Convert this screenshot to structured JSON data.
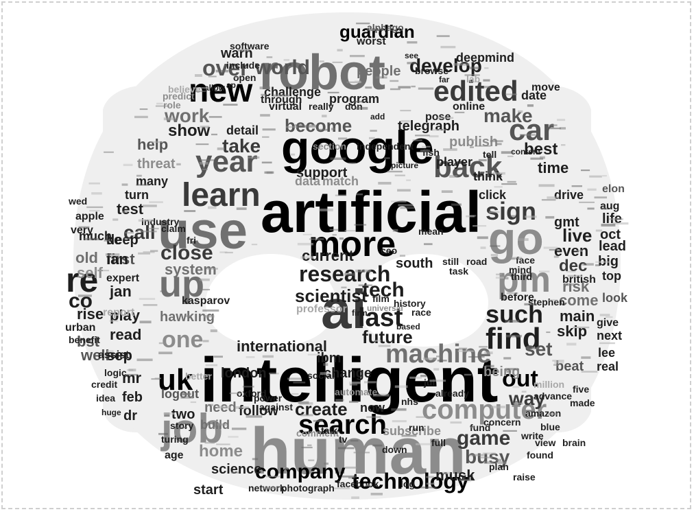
{
  "image": {
    "kind": "word cloud in the shape of a robot face",
    "background_color": "#ffffff",
    "mask_color": "#efefef",
    "palette": [
      "#000000",
      "#1e1e1e",
      "#3a3a3a",
      "#555555",
      "#707070",
      "#8c8c8c",
      "#a8a8a8"
    ]
  },
  "words": {
    "large": [
      {
        "text": "intelligent",
        "color": "#000000"
      },
      {
        "text": "artificial",
        "color": "#000000"
      },
      {
        "text": "human",
        "color": "#8c8c8c"
      },
      {
        "text": "ai",
        "color": "#3a3a3a"
      },
      {
        "text": "google",
        "color": "#000000"
      },
      {
        "text": "robot",
        "color": "#707070"
      },
      {
        "text": "use",
        "color": "#707070"
      },
      {
        "text": "more",
        "color": "#000000"
      },
      {
        "text": "learn",
        "color": "#3a3a3a"
      },
      {
        "text": "new",
        "color": "#000000"
      },
      {
        "text": "edited",
        "color": "#3a3a3a"
      },
      {
        "text": "year",
        "color": "#555555"
      },
      {
        "text": "back",
        "color": "#555555"
      },
      {
        "text": "go",
        "color": "#8c8c8c"
      },
      {
        "text": "job",
        "color": "#8c8c8c"
      },
      {
        "text": "pm",
        "color": "#8c8c8c"
      },
      {
        "text": "search",
        "color": "#000000"
      },
      {
        "text": "computer",
        "color": "#8c8c8c"
      },
      {
        "text": "up",
        "color": "#707070"
      },
      {
        "text": "find",
        "color": "#1e1e1e"
      },
      {
        "text": "machine",
        "color": "#707070"
      },
      {
        "text": "re",
        "color": "#1e1e1e"
      },
      {
        "text": "uk",
        "color": "#000000"
      },
      {
        "text": "car",
        "color": "#555555"
      },
      {
        "text": "technology",
        "color": "#000000"
      },
      {
        "text": "last",
        "color": "#1e1e1e"
      },
      {
        "text": "research",
        "color": "#1e1e1e"
      },
      {
        "text": "world",
        "color": "#555555"
      },
      {
        "text": "company",
        "color": "#000000"
      },
      {
        "text": "one",
        "color": "#8c8c8c"
      },
      {
        "text": "sign",
        "color": "#3a3a3a"
      },
      {
        "text": "such",
        "color": "#1e1e1e"
      },
      {
        "text": "out",
        "color": "#000000"
      },
      {
        "text": "game",
        "color": "#3a3a3a"
      },
      {
        "text": "future",
        "color": "#1e1e1e"
      },
      {
        "text": "guardian",
        "color": "#000000"
      },
      {
        "text": "tech",
        "color": "#1e1e1e"
      },
      {
        "text": "develop",
        "color": "#1e1e1e"
      },
      {
        "text": "over",
        "color": "#555555"
      },
      {
        "text": "become",
        "color": "#555555"
      },
      {
        "text": "make",
        "color": "#555555"
      },
      {
        "text": "take",
        "color": "#3a3a3a"
      },
      {
        "text": "close",
        "color": "#3a3a3a"
      },
      {
        "text": "create",
        "color": "#1e1e1e"
      },
      {
        "text": "international",
        "color": "#1e1e1e"
      },
      {
        "text": "busy",
        "color": "#555555"
      },
      {
        "text": "set",
        "color": "#555555"
      },
      {
        "text": "work",
        "color": "#707070"
      },
      {
        "text": "co",
        "color": "#1e1e1e"
      },
      {
        "text": "best",
        "color": "#1e1e1e"
      },
      {
        "text": "people",
        "color": "#707070"
      },
      {
        "text": "home",
        "color": "#8c8c8c"
      },
      {
        "text": "way",
        "color": "#3a3a3a"
      },
      {
        "text": "system",
        "color": "#707070"
      },
      {
        "text": "call",
        "color": "#3a3a3a"
      },
      {
        "text": "live",
        "color": "#1e1e1e"
      },
      {
        "text": "time",
        "color": "#1e1e1e"
      },
      {
        "text": "dec",
        "color": "#3a3a3a"
      }
    ],
    "medium": [
      {
        "text": "deep",
        "color": "#1e1e1e"
      },
      {
        "text": "first",
        "color": "#555555"
      },
      {
        "text": "old",
        "color": "#707070"
      },
      {
        "text": "self",
        "color": "#8c8c8c"
      },
      {
        "text": "jan",
        "color": "#1e1e1e"
      },
      {
        "text": "expert",
        "color": "#1e1e1e"
      },
      {
        "text": "rise",
        "color": "#1e1e1e"
      },
      {
        "text": "play",
        "color": "#1e1e1e"
      },
      {
        "text": "read",
        "color": "#1e1e1e"
      },
      {
        "text": "sep",
        "color": "#1e1e1e"
      },
      {
        "text": "mr",
        "color": "#1e1e1e"
      },
      {
        "text": "feb",
        "color": "#1e1e1e"
      },
      {
        "text": "dr",
        "color": "#1e1e1e"
      },
      {
        "text": "well",
        "color": "#555555"
      },
      {
        "text": "bst",
        "color": "#555555"
      },
      {
        "text": "test",
        "color": "#1e1e1e"
      },
      {
        "text": "help",
        "color": "#555555"
      },
      {
        "text": "threat",
        "color": "#8c8c8c"
      },
      {
        "text": "show",
        "color": "#1e1e1e"
      },
      {
        "text": "warn",
        "color": "#1e1e1e"
      },
      {
        "text": "detail",
        "color": "#1e1e1e"
      },
      {
        "text": "support",
        "color": "#1e1e1e"
      },
      {
        "text": "data",
        "color": "#8c8c8c"
      },
      {
        "text": "match",
        "color": "#8c8c8c"
      },
      {
        "text": "publish",
        "color": "#8c8c8c"
      },
      {
        "text": "telegraph",
        "color": "#1e1e1e"
      },
      {
        "text": "player",
        "color": "#1e1e1e"
      },
      {
        "text": "think",
        "color": "#1e1e1e"
      },
      {
        "text": "click",
        "color": "#1e1e1e"
      },
      {
        "text": "gmt",
        "color": "#1e1e1e"
      },
      {
        "text": "drive",
        "color": "#1e1e1e"
      },
      {
        "text": "even",
        "color": "#1e1e1e"
      },
      {
        "text": "risk",
        "color": "#707070"
      },
      {
        "text": "come",
        "color": "#707070"
      },
      {
        "text": "main",
        "color": "#1e1e1e"
      },
      {
        "text": "skip",
        "color": "#1e1e1e"
      },
      {
        "text": "beat",
        "color": "#555555"
      },
      {
        "text": "being",
        "color": "#8c8c8c"
      },
      {
        "text": "british",
        "color": "#1e1e1e"
      },
      {
        "text": "before",
        "color": "#1e1e1e"
      },
      {
        "text": "life",
        "color": "#1e1e1e"
      },
      {
        "text": "lead",
        "color": "#1e1e1e"
      },
      {
        "text": "oct",
        "color": "#1e1e1e"
      },
      {
        "text": "big",
        "color": "#1e1e1e"
      },
      {
        "text": "top",
        "color": "#1e1e1e"
      },
      {
        "text": "look",
        "color": "#555555"
      },
      {
        "text": "next",
        "color": "#1e1e1e"
      },
      {
        "text": "lee",
        "color": "#1e1e1e"
      },
      {
        "text": "real",
        "color": "#1e1e1e"
      },
      {
        "text": "give",
        "color": "#1e1e1e"
      },
      {
        "text": "elon",
        "color": "#555555"
      },
      {
        "text": "aug",
        "color": "#1e1e1e"
      },
      {
        "text": "scientist",
        "color": "#1e1e1e"
      },
      {
        "text": "professor",
        "color": "#a8a8a8"
      },
      {
        "text": "current",
        "color": "#1e1e1e"
      },
      {
        "text": "hawking",
        "color": "#707070"
      },
      {
        "text": "change",
        "color": "#1e1e1e"
      },
      {
        "text": "london",
        "color": "#1e1e1e"
      },
      {
        "text": "ibm",
        "color": "#1e1e1e"
      },
      {
        "text": "follow",
        "color": "#1e1e1e"
      },
      {
        "text": "need",
        "color": "#707070"
      },
      {
        "text": "science",
        "color": "#1e1e1e"
      },
      {
        "text": "two",
        "color": "#1e1e1e"
      },
      {
        "text": "logout",
        "color": "#555555"
      },
      {
        "text": "build",
        "color": "#707070"
      },
      {
        "text": "start",
        "color": "#1e1e1e"
      },
      {
        "text": "subscribe",
        "color": "#8c8c8c"
      },
      {
        "text": "now",
        "color": "#1e1e1e"
      },
      {
        "text": "musk",
        "color": "#1e1e1e"
      },
      {
        "text": "deepmind",
        "color": "#1e1e1e"
      },
      {
        "text": "online",
        "color": "#1e1e1e"
      },
      {
        "text": "program",
        "color": "#1e1e1e"
      },
      {
        "text": "through",
        "color": "#1e1e1e"
      },
      {
        "text": "challenge",
        "color": "#1e1e1e"
      },
      {
        "text": "date",
        "color": "#1e1e1e"
      },
      {
        "text": "move",
        "color": "#1e1e1e"
      },
      {
        "text": "apple",
        "color": "#1e1e1e"
      },
      {
        "text": "many",
        "color": "#1e1e1e"
      },
      {
        "text": "turn",
        "color": "#1e1e1e"
      },
      {
        "text": "wed",
        "color": "#1e1e1e"
      },
      {
        "text": "very",
        "color": "#1e1e1e"
      },
      {
        "text": "much",
        "color": "#1e1e1e"
      },
      {
        "text": "claim",
        "color": "#1e1e1e"
      },
      {
        "text": "kasparov",
        "color": "#1e1e1e"
      },
      {
        "text": "fri",
        "color": "#1e1e1e"
      },
      {
        "text": "industry",
        "color": "#1e1e1e"
      },
      {
        "text": "report",
        "color": "#a8a8a8"
      },
      {
        "text": "assist",
        "color": "#1e1e1e"
      },
      {
        "text": "credit",
        "color": "#1e1e1e"
      },
      {
        "text": "idea",
        "color": "#1e1e1e"
      },
      {
        "text": "huge",
        "color": "#1e1e1e"
      },
      {
        "text": "logic",
        "color": "#1e1e1e"
      },
      {
        "text": "benefit",
        "color": "#1e1e1e"
      },
      {
        "text": "urban",
        "color": "#1e1e1e"
      },
      {
        "text": "better",
        "color": "#a8a8a8"
      },
      {
        "text": "story",
        "color": "#1e1e1e"
      },
      {
        "text": "turing",
        "color": "#1e1e1e"
      },
      {
        "text": "age",
        "color": "#1e1e1e"
      },
      {
        "text": "worst",
        "color": "#1e1e1e"
      },
      {
        "text": "alphago",
        "color": "#555555"
      },
      {
        "text": "see",
        "color": "#1e1e1e"
      },
      {
        "text": "software",
        "color": "#1e1e1e"
      },
      {
        "text": "include",
        "color": "#1e1e1e"
      },
      {
        "text": "open",
        "color": "#1e1e1e"
      },
      {
        "text": "browse",
        "color": "#1e1e1e"
      },
      {
        "text": "far",
        "color": "#1e1e1e"
      },
      {
        "text": "lab",
        "color": "#a8a8a8"
      },
      {
        "text": "role",
        "color": "#8c8c8c"
      },
      {
        "text": "predict",
        "color": "#8c8c8c"
      },
      {
        "text": "believe",
        "color": "#a8a8a8"
      },
      {
        "text": "allow",
        "color": "#1e1e1e"
      },
      {
        "text": "ap",
        "color": "#1e1e1e"
      },
      {
        "text": "virtual",
        "color": "#1e1e1e"
      },
      {
        "text": "really",
        "color": "#1e1e1e"
      },
      {
        "text": "don",
        "color": "#1e1e1e"
      },
      {
        "text": "pose",
        "color": "#1e1e1e"
      },
      {
        "text": "add",
        "color": "#1e1e1e"
      },
      {
        "text": "section",
        "color": "#8c8c8c"
      },
      {
        "text": "independent",
        "color": "#1e1e1e"
      },
      {
        "text": "fish",
        "color": "#1e1e1e"
      },
      {
        "text": "tell",
        "color": "#1e1e1e"
      },
      {
        "text": "content",
        "color": "#1e1e1e"
      },
      {
        "text": "picture",
        "color": "#1e1e1e"
      },
      {
        "text": "ceo",
        "color": "#1e1e1e"
      },
      {
        "text": "south",
        "color": "#1e1e1e"
      },
      {
        "text": "task",
        "color": "#1e1e1e"
      },
      {
        "text": "still",
        "color": "#1e1e1e"
      },
      {
        "text": "mean",
        "color": "#1e1e1e"
      },
      {
        "text": "film",
        "color": "#1e1e1e"
      },
      {
        "text": "universal",
        "color": "#8c8c8c"
      },
      {
        "text": "history",
        "color": "#1e1e1e"
      },
      {
        "text": "firm",
        "color": "#1e1e1e"
      },
      {
        "text": "race",
        "color": "#1e1e1e"
      },
      {
        "text": "based",
        "color": "#1e1e1e"
      },
      {
        "text": "already",
        "color": "#1e1e1e"
      },
      {
        "text": "nhs",
        "color": "#1e1e1e"
      },
      {
        "text": "jul",
        "color": "#1e1e1e"
      },
      {
        "text": "run",
        "color": "#1e1e1e"
      },
      {
        "text": "full",
        "color": "#1e1e1e"
      },
      {
        "text": "fund",
        "color": "#1e1e1e"
      },
      {
        "text": "concern",
        "color": "#1e1e1e"
      },
      {
        "text": "put",
        "color": "#1e1e1e"
      },
      {
        "text": "log",
        "color": "#1e1e1e"
      },
      {
        "text": "facebook",
        "color": "#1e1e1e"
      },
      {
        "text": "photograph",
        "color": "#1e1e1e"
      },
      {
        "text": "network",
        "color": "#1e1e1e"
      },
      {
        "text": "down",
        "color": "#1e1e1e"
      },
      {
        "text": "amazon",
        "color": "#1e1e1e"
      },
      {
        "text": "blue",
        "color": "#1e1e1e"
      },
      {
        "text": "million",
        "color": "#a8a8a8"
      },
      {
        "text": "advance",
        "color": "#1e1e1e"
      },
      {
        "text": "made",
        "color": "#1e1e1e"
      },
      {
        "text": "five",
        "color": "#1e1e1e"
      },
      {
        "text": "view",
        "color": "#1e1e1e"
      },
      {
        "text": "brain",
        "color": "#1e1e1e"
      },
      {
        "text": "found",
        "color": "#1e1e1e"
      },
      {
        "text": "write",
        "color": "#1e1e1e"
      },
      {
        "text": "road",
        "color": "#1e1e1e"
      },
      {
        "text": "face",
        "color": "#1e1e1e"
      },
      {
        "text": "plan",
        "color": "#1e1e1e"
      },
      {
        "text": "raise",
        "color": "#1e1e1e"
      },
      {
        "text": "stephen",
        "color": "#1e1e1e"
      },
      {
        "text": "mind",
        "color": "#1e1e1e"
      },
      {
        "text": "third",
        "color": "#1e1e1e"
      },
      {
        "text": "social",
        "color": "#1e1e1e"
      },
      {
        "text": "oxford",
        "color": "#1e1e1e"
      },
      {
        "text": "power",
        "color": "#1e1e1e"
      },
      {
        "text": "against",
        "color": "#1e1e1e"
      },
      {
        "text": "automate",
        "color": "#8c8c8c"
      },
      {
        "text": "comment",
        "color": "#8c8c8c"
      },
      {
        "text": "talk",
        "color": "#1e1e1e"
      },
      {
        "text": "tv",
        "color": "#1e1e1e"
      },
      {
        "text": "ke",
        "color": "#1e1e1e"
      },
      {
        "text": "ian",
        "color": "#1e1e1e"
      }
    ]
  }
}
